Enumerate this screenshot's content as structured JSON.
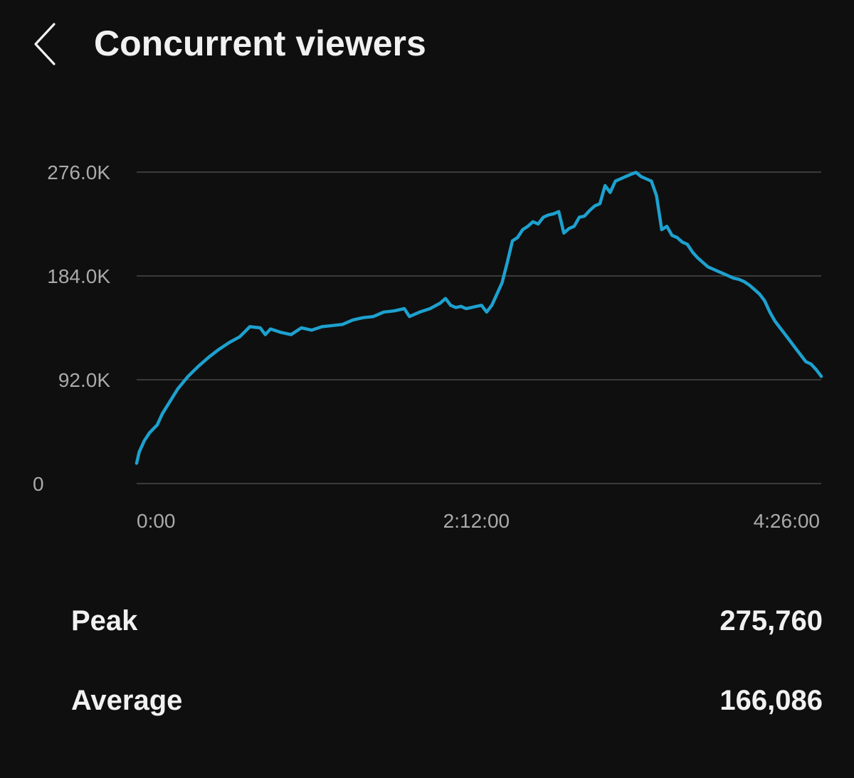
{
  "header": {
    "back_icon": "chevron-left-icon",
    "title": "Concurrent viewers"
  },
  "colors": {
    "background": "#0f0f0f",
    "line": "#1da1cf",
    "grid": "#3a3a3a",
    "tick_text": "#aaaaaa",
    "text": "#f1f1f1"
  },
  "chart_data": {
    "type": "line",
    "title": "",
    "xlabel": "",
    "ylabel": "",
    "grid": true,
    "legend": "none",
    "x_range_minutes": [
      0,
      266
    ],
    "ylim": [
      0,
      276000
    ],
    "y_ticks": [
      0,
      92000,
      184000,
      276000
    ],
    "y_tick_labels": [
      "0",
      "92.0K",
      "184.0K",
      "276.0K"
    ],
    "x_tick_labels": [
      "0:00",
      "2:12:00",
      "4:26:00"
    ],
    "x_tick_minutes": [
      0,
      132,
      266
    ],
    "series": [
      {
        "name": "",
        "x_minutes": [
          0,
          1,
          3,
          5,
          8,
          10,
          13,
          16,
          20,
          24,
          28,
          32,
          36,
          40,
          44,
          48,
          50,
          52,
          56,
          60,
          64,
          68,
          72,
          76,
          80,
          84,
          88,
          92,
          96,
          100,
          104,
          106,
          110,
          114,
          118,
          120,
          122,
          124,
          126,
          128,
          130,
          132,
          134,
          136,
          138,
          140,
          142,
          144,
          146,
          148,
          150,
          152,
          154,
          156,
          158,
          160,
          162,
          164,
          166,
          168,
          170,
          172,
          174,
          176,
          178,
          180,
          182,
          184,
          186,
          188,
          190,
          192,
          194,
          196,
          198,
          200,
          202,
          204,
          206,
          208,
          210,
          212,
          214,
          216,
          218,
          220,
          222,
          224,
          226,
          228,
          230,
          232,
          234,
          236,
          238,
          240,
          242,
          244,
          246,
          248,
          250,
          252,
          254,
          256,
          258,
          260,
          262,
          264,
          266
        ],
        "values": [
          18000,
          28000,
          38000,
          45000,
          52000,
          62000,
          73000,
          84000,
          95000,
          104000,
          112000,
          119000,
          125000,
          130000,
          139000,
          138000,
          132000,
          137000,
          134000,
          132000,
          138000,
          136000,
          139000,
          140000,
          141000,
          145000,
          147000,
          148000,
          152000,
          153000,
          155000,
          148000,
          152000,
          155000,
          160000,
          164000,
          158000,
          156000,
          157000,
          155000,
          156000,
          157000,
          158000,
          152000,
          158000,
          168000,
          178000,
          196000,
          215000,
          218000,
          225000,
          228000,
          232000,
          230000,
          236000,
          238000,
          239000,
          241000,
          222000,
          226000,
          228000,
          236000,
          237000,
          242000,
          246000,
          248000,
          264000,
          258000,
          268000,
          270000,
          272000,
          274000,
          275760,
          272000,
          270000,
          268000,
          255000,
          225000,
          228000,
          220000,
          218000,
          214000,
          212000,
          205000,
          200000,
          196000,
          192000,
          190000,
          188000,
          186000,
          184000,
          182000,
          181000,
          179000,
          176000,
          172000,
          168000,
          162000,
          152000,
          144000,
          138000,
          132000,
          126000,
          120000,
          114000,
          108000,
          106000,
          101000,
          95000
        ]
      }
    ]
  },
  "stats": [
    {
      "label": "Peak",
      "value": "275,760"
    },
    {
      "label": "Average",
      "value": "166,086"
    }
  ]
}
